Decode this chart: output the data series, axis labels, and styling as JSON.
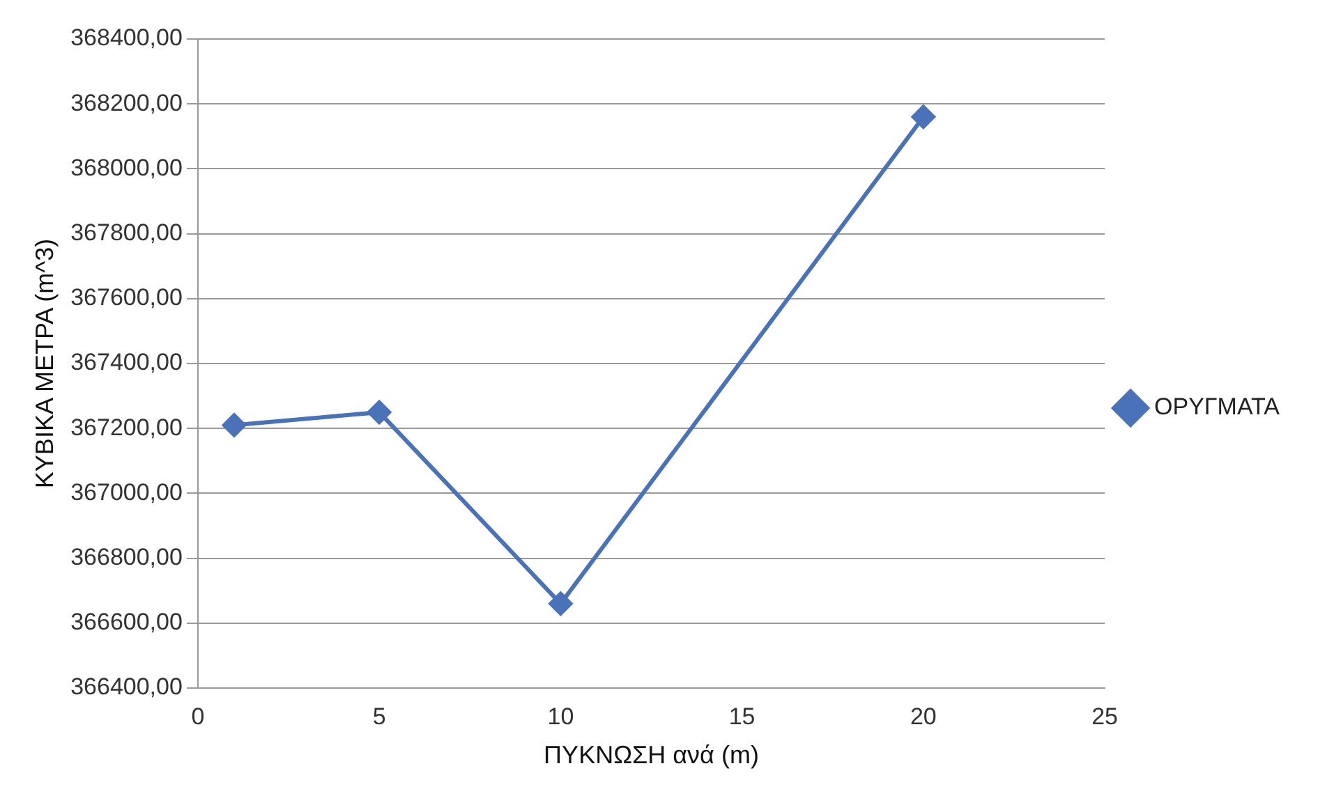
{
  "chart_data": {
    "type": "line",
    "xlabel": "ΠΥΚΝΩΣΗ ανά (m)",
    "ylabel": "ΚΥΒΙΚΑ ΜΕΤΡΑ (m^3)",
    "x": [
      1,
      5,
      10,
      20
    ],
    "series": [
      {
        "name": "ΟΡΥΓΜΑΤΑ",
        "color": "#4a72b8",
        "values": [
          367210,
          367250,
          366660,
          368160
        ]
      }
    ],
    "xlim": [
      0,
      25
    ],
    "xticks": [
      0,
      5,
      10,
      15,
      20,
      25
    ],
    "ylim": [
      366400,
      368400
    ],
    "yticks": [
      {
        "value": 366400,
        "label": "366400,00"
      },
      {
        "value": 366600,
        "label": "366600,00"
      },
      {
        "value": 366800,
        "label": "366800,00"
      },
      {
        "value": 367000,
        "label": "367000,00"
      },
      {
        "value": 367200,
        "label": "367200,00"
      },
      {
        "value": 367400,
        "label": "367400,00"
      },
      {
        "value": 367600,
        "label": "367600,00"
      },
      {
        "value": 367800,
        "label": "367800,00"
      },
      {
        "value": 368000,
        "label": "368000,00"
      },
      {
        "value": 368200,
        "label": "368200,00"
      },
      {
        "value": 368400,
        "label": "368400,00"
      }
    ],
    "grid": "y",
    "legend": "right",
    "marker": "diamond",
    "line_style": "solid"
  }
}
